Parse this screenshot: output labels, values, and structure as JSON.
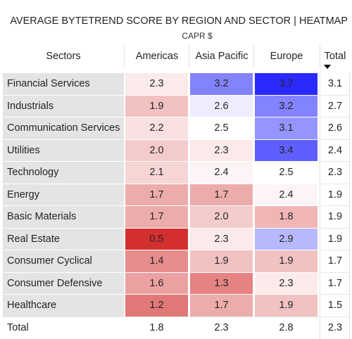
{
  "header": {
    "title": "AVERAGE BYTETREND SCORE BY REGION AND SECTOR | HEATMAP",
    "subtitle": "CAPR $"
  },
  "colors": {
    "low": "#d32f2f",
    "mid": "#ffffff",
    "high": "#2a2aff",
    "label_bg": "#e4e4e4"
  },
  "chart_data": {
    "type": "heatmap",
    "row_header": "Sectors",
    "columns": [
      "Americas",
      "Asia Pacific",
      "Europe"
    ],
    "total_header": "Total",
    "sort": "descending by Total",
    "rows": [
      {
        "name": "Financial Services",
        "values": [
          2.3,
          3.2,
          3.7
        ],
        "total": 3.1
      },
      {
        "name": "Industrials",
        "values": [
          1.9,
          2.6,
          3.2
        ],
        "total": 2.7
      },
      {
        "name": "Communication Services",
        "values": [
          2.2,
          2.5,
          3.1
        ],
        "total": 2.6
      },
      {
        "name": "Utilities",
        "values": [
          2.0,
          2.3,
          3.4
        ],
        "total": 2.4
      },
      {
        "name": "Technology",
        "values": [
          2.1,
          2.4,
          2.5
        ],
        "total": 2.3
      },
      {
        "name": "Energy",
        "values": [
          1.7,
          1.7,
          2.4
        ],
        "total": 1.9
      },
      {
        "name": "Basic Materials",
        "values": [
          1.7,
          2.0,
          1.8
        ],
        "total": 1.9
      },
      {
        "name": "Real Estate",
        "values": [
          0.5,
          2.3,
          2.9
        ],
        "total": 1.9
      },
      {
        "name": "Consumer Cyclical",
        "values": [
          1.4,
          1.9,
          1.9
        ],
        "total": 1.7
      },
      {
        "name": "Consumer Defensive",
        "values": [
          1.6,
          1.3,
          2.3
        ],
        "total": 1.7
      },
      {
        "name": "Healthcare",
        "values": [
          1.2,
          1.7,
          1.9
        ],
        "total": 1.5
      }
    ],
    "total_row": {
      "name": "Total",
      "values": [
        1.8,
        2.3,
        2.8
      ],
      "total": 2.3
    },
    "color_scale": {
      "min": 0.5,
      "mid": 2.5,
      "max": 3.7
    }
  }
}
